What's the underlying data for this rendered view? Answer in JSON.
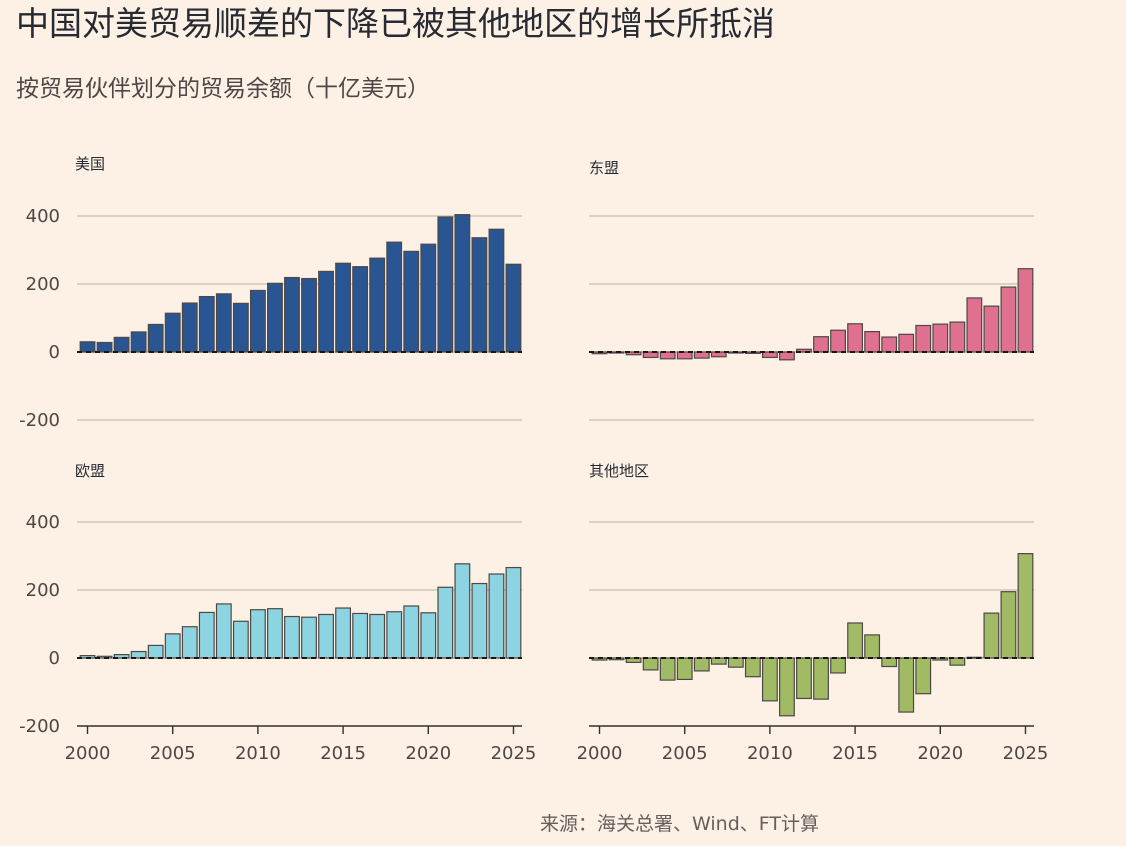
{
  "title": "中国对美贸易顺差的下降已被其他地区的增长所抵消",
  "subtitle": "按贸易伙伴划分的贸易余额（十亿美元）",
  "source": "来源：海关总署、Wind、FT计算",
  "colors": {
    "background": "#fdf1e5",
    "grid": "#c9bcaf",
    "axis": "#33302e",
    "bar_stroke": "#4d4845"
  },
  "chart_data": [
    {
      "type": "bar",
      "title": "美国",
      "color": "#2a5593",
      "categories": [
        2000,
        2001,
        2002,
        2003,
        2004,
        2005,
        2006,
        2007,
        2008,
        2009,
        2010,
        2011,
        2012,
        2013,
        2014,
        2015,
        2016,
        2017,
        2018,
        2019,
        2020,
        2021,
        2022,
        2023,
        2024,
        2025
      ],
      "values": [
        30,
        28,
        43,
        59,
        81,
        114,
        144,
        163,
        171,
        143,
        181,
        202,
        219,
        216,
        237,
        261,
        251,
        276,
        323,
        296,
        317,
        397,
        404,
        336,
        361,
        258
      ],
      "ylim": [
        -200,
        400
      ],
      "yticks": [
        "400",
        "200",
        "0",
        "-200"
      ],
      "xticks": []
    },
    {
      "type": "bar",
      "title": "东盟",
      "color": "#df708f",
      "categories": [
        2000,
        2001,
        2002,
        2003,
        2004,
        2005,
        2006,
        2007,
        2008,
        2009,
        2010,
        2011,
        2012,
        2013,
        2014,
        2015,
        2016,
        2017,
        2018,
        2019,
        2020,
        2021,
        2022,
        2023,
        2024,
        2025
      ],
      "values": [
        -5,
        -3,
        -8,
        -16,
        -20,
        -20,
        -18,
        -14,
        -3,
        -4,
        -16,
        -23,
        8,
        45,
        64,
        83,
        60,
        44,
        52,
        78,
        82,
        88,
        159,
        135,
        191,
        245
      ],
      "ylim": [
        -200,
        400
      ],
      "yticks": [],
      "xticks": []
    },
    {
      "type": "bar",
      "title": "欧盟",
      "color": "#8dd4e3",
      "categories": [
        2000,
        2001,
        2002,
        2003,
        2004,
        2005,
        2006,
        2007,
        2008,
        2009,
        2010,
        2011,
        2012,
        2013,
        2014,
        2015,
        2016,
        2017,
        2018,
        2019,
        2020,
        2021,
        2022,
        2023,
        2024,
        2025
      ],
      "values": [
        7,
        5,
        10,
        19,
        37,
        71,
        92,
        134,
        159,
        108,
        142,
        145,
        122,
        120,
        128,
        147,
        131,
        128,
        136,
        153,
        133,
        208,
        277,
        219,
        247,
        266
      ],
      "ylim": [
        -200,
        400
      ],
      "yticks": [
        "400",
        "200",
        "0",
        "-200"
      ],
      "xticks": [
        "2000",
        "2005",
        "2010",
        "2015",
        "2020",
        "2025"
      ]
    },
    {
      "type": "bar",
      "title": "其他地区",
      "color": "#a0bb63",
      "categories": [
        2000,
        2001,
        2002,
        2003,
        2004,
        2005,
        2006,
        2007,
        2008,
        2009,
        2010,
        2011,
        2012,
        2013,
        2014,
        2015,
        2016,
        2017,
        2018,
        2019,
        2020,
        2021,
        2022,
        2023,
        2024,
        2025
      ],
      "values": [
        -6,
        -5,
        -13,
        -35,
        -65,
        -63,
        -38,
        -18,
        -27,
        -55,
        -126,
        -170,
        -119,
        -121,
        -44,
        103,
        68,
        -25,
        -159,
        -105,
        -6,
        -21,
        2,
        132,
        195,
        307
      ],
      "ylim": [
        -200,
        400
      ],
      "yticks": [],
      "xticks": [
        "2000",
        "2005",
        "2010",
        "2015",
        "2020",
        "2025"
      ]
    }
  ]
}
